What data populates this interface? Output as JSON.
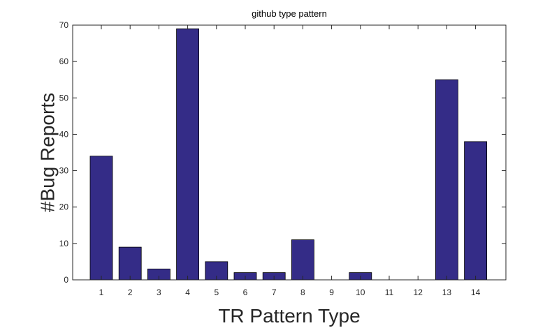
{
  "colors": {
    "bar_fill": "#342c87",
    "bar_stroke": "#000000",
    "axis": "#262626",
    "background": "#ffffff"
  },
  "chart_data": {
    "type": "bar",
    "title": "github type pattern",
    "xlabel": "TR Pattern Type",
    "ylabel": "#Bug Reports",
    "categories": [
      "1",
      "2",
      "3",
      "4",
      "5",
      "6",
      "7",
      "8",
      "9",
      "10",
      "11",
      "12",
      "13",
      "14"
    ],
    "values": [
      34,
      9,
      3,
      69,
      5,
      2,
      2,
      11,
      0,
      2,
      0,
      0,
      55,
      38
    ],
    "ylim": [
      0,
      70
    ],
    "yticks": [
      0,
      10,
      20,
      30,
      40,
      50,
      60,
      70
    ],
    "grid": false,
    "box": true
  }
}
